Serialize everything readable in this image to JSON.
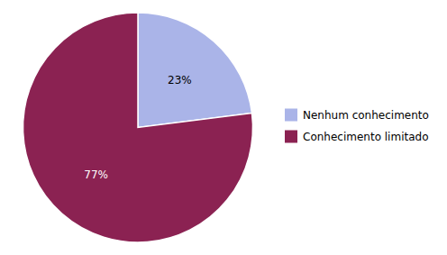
{
  "chart_data": {
    "type": "pie",
    "categories": [
      "Nenhum conhecimento",
      "Conhecimento limitado"
    ],
    "values": [
      23,
      77
    ],
    "value_labels": [
      "23%",
      "77%"
    ],
    "colors": [
      "#aab4e8",
      "#8b2252"
    ],
    "data_labels": true,
    "legend": "right"
  }
}
